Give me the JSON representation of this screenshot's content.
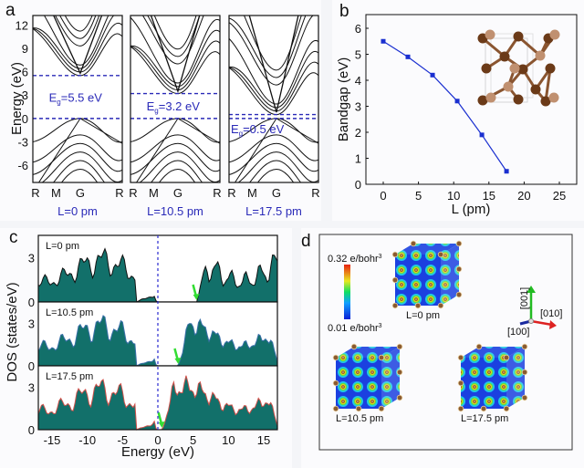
{
  "panels": {
    "a": {
      "label": "a",
      "ylabel": "Energy (eV)",
      "yticks": [
        "12",
        "9",
        "6",
        "3",
        "0",
        "-3",
        "-6"
      ],
      "kpoints": [
        "R",
        "M",
        "G",
        "R"
      ],
      "subplots": [
        {
          "caption": "L=0 pm",
          "gap_label": "E",
          "gap_sub": "g",
          "gap_value": "=5.5 eV",
          "gap": 5.5
        },
        {
          "caption": "L=10.5 pm",
          "gap_label": "E",
          "gap_sub": "g",
          "gap_value": "=3.2 eV",
          "gap": 3.2
        },
        {
          "caption": "L=17.5 pm",
          "gap_label": "E",
          "gap_sub": "g",
          "gap_value": "=0.5 eV",
          "gap": 0.5
        }
      ]
    },
    "b": {
      "label": "b"
    },
    "c": {
      "label": "c",
      "ylabel": "DOS (states/eV)",
      "xlabel": "Energy (eV)",
      "xticks": [
        "-15",
        "-10",
        "-5",
        "0",
        "5",
        "10",
        "15"
      ],
      "subplots": [
        {
          "caption": "L=0 pm",
          "gap": 5.5,
          "edge": "#111111"
        },
        {
          "caption": "L=10.5 pm",
          "gap": 2.9,
          "edge": "#3a6fa8"
        },
        {
          "caption": "L=17.5 pm",
          "gap": 0.6,
          "edge": "#d0504a"
        }
      ],
      "yticks": [
        "3",
        "0"
      ]
    },
    "d": {
      "label": "d",
      "scale_max": "0.32 e/bohr",
      "scale_min": "0.01 e/bohr",
      "sup": "3",
      "cubes": [
        "L=0 pm",
        "L=10.5 pm",
        "L=17.5 pm"
      ],
      "axes": {
        "z": "[001]",
        "y": "[010]",
        "x": "[100]"
      }
    }
  },
  "chart_data": [
    {
      "type": "line",
      "title": "",
      "xlabel": "L (pm)",
      "ylabel": "Bandgap (eV)",
      "x": [
        0,
        3.5,
        7,
        10.5,
        14,
        17.5
      ],
      "series": [
        {
          "name": "Bandgap",
          "values": [
            5.5,
            4.9,
            4.2,
            3.2,
            1.9,
            0.5
          ]
        }
      ],
      "xlim": [
        -3,
        27
      ],
      "ylim": [
        0,
        6.5
      ],
      "xticks": [
        "0",
        "5",
        "10",
        "15",
        "20",
        "25"
      ],
      "yticks": [
        "0",
        "1",
        "2",
        "3",
        "4",
        "5",
        "6"
      ],
      "color": "#1a2fd0"
    }
  ]
}
